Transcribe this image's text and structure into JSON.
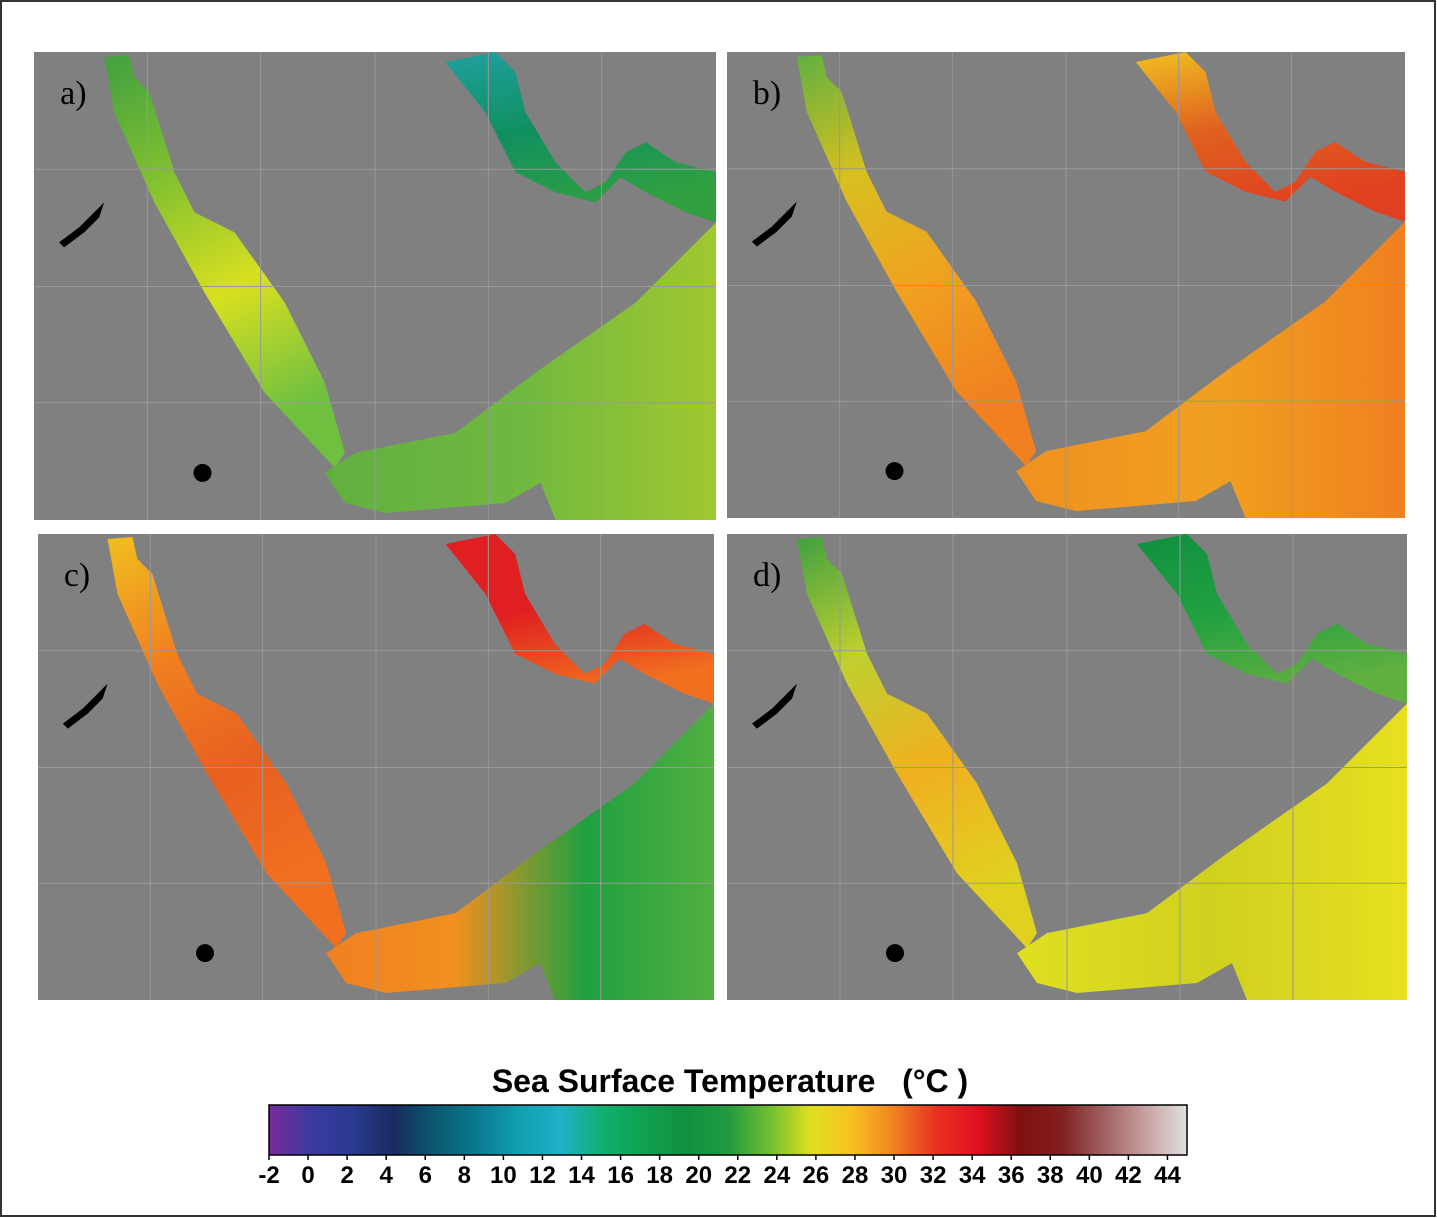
{
  "panels": [
    {
      "label": "a)"
    },
    {
      "label": "b)"
    },
    {
      "label": "c)"
    },
    {
      "label": "d)"
    }
  ],
  "colorbar": {
    "title": "Sea Surface Temperature   (°C )",
    "lim": [
      -2,
      45
    ],
    "ticks": [
      -2,
      0,
      2,
      4,
      6,
      8,
      10,
      12,
      14,
      16,
      18,
      20,
      22,
      24,
      26,
      28,
      30,
      32,
      34,
      36,
      38,
      40,
      42,
      44
    ],
    "colormap": [
      "#7a2a9a",
      "#3a3aa0",
      "#2a3a90",
      "#1a2a60",
      "#0a5a70",
      "#0a7a90",
      "#10a0b0",
      "#20b0c8",
      "#10b070",
      "#10a050",
      "#109040",
      "#209a40",
      "#70c030",
      "#e0e020",
      "#f8c020",
      "#f08020",
      "#e83020",
      "#e01020",
      "#801010",
      "#802020",
      "#a06060",
      "#c8a0a0",
      "#e0e0e0"
    ]
  }
}
